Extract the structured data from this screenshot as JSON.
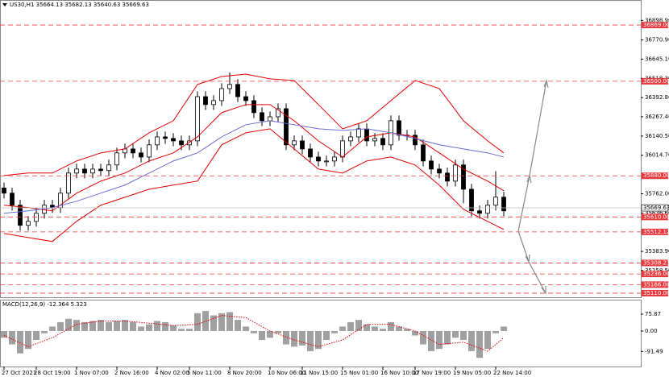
{
  "chart_data": [
    {
      "type": "candlestick",
      "title": "US30,H1 35664.13 35682.13 35640.63 35669.63",
      "categories": [
        "27 Oct 2021",
        null,
        null,
        null,
        "28 Oct 19:00",
        null,
        null,
        null,
        null,
        "1 Nov 07:00",
        null,
        null,
        null,
        null,
        "2 Nov 16:00",
        null,
        null,
        null,
        null,
        "4 Nov 02:00",
        null,
        null,
        null,
        "5 Nov 11:00",
        null,
        null,
        null,
        null,
        "8 Nov 20:00",
        null,
        null,
        null,
        null,
        "10 Nov 06:00",
        null,
        null,
        null,
        "11 Nov 15:00",
        null,
        null,
        null,
        null,
        "15 Nov 01:00",
        null,
        null,
        null,
        null,
        "16 Nov 10:00",
        null,
        null,
        null,
        "17 Nov 19:00",
        null,
        null,
        null,
        null,
        "19 Nov 05:00",
        null,
        null,
        null,
        null,
        "22 Nov 14:00",
        null
      ],
      "open": [
        35800,
        35766,
        35687,
        35555,
        35581,
        35634,
        35687,
        35671,
        35766,
        35898,
        35924,
        35898,
        35924,
        35914,
        35951,
        36030,
        36056,
        36030,
        36003,
        36083,
        36135,
        36125,
        36109,
        36083,
        36109,
        36399,
        36347,
        36373,
        36452,
        36479,
        36399,
        36373,
        36294,
        36241,
        36267,
        36320,
        36083,
        36109,
        36056,
        36003,
        35977,
        35977,
        36003,
        36109,
        36135,
        36188,
        36109,
        36125,
        36083,
        36241,
        36146,
        36146,
        36083,
        35977,
        35924,
        35898,
        35845,
        35951,
        35792,
        35650,
        35634,
        35687,
        35740
      ],
      "high": [
        35835,
        35801,
        35722,
        35616,
        35669,
        35722,
        35722,
        35801,
        35933,
        35959,
        35959,
        35959,
        35959,
        35986,
        36065,
        36091,
        36091,
        36065,
        36118,
        36170,
        36170,
        36160,
        36144,
        36144,
        36434,
        36434,
        36408,
        36487,
        36558,
        36514,
        36434,
        36408,
        36329,
        36302,
        36355,
        36355,
        36144,
        36144,
        36091,
        36038,
        36012,
        36038,
        36144,
        36170,
        36223,
        36223,
        36160,
        36160,
        36276,
        36276,
        36181,
        36181,
        36118,
        36012,
        35959,
        35933,
        35986,
        35986,
        35827,
        35685,
        35722,
        35910,
        35775
      ],
      "low": [
        35731,
        35652,
        35520,
        35520,
        35546,
        35599,
        35636,
        35636,
        35731,
        35863,
        35863,
        35863,
        35879,
        35879,
        35916,
        35995,
        35995,
        35968,
        35968,
        36048,
        36090,
        36074,
        36048,
        36048,
        36074,
        36312,
        36312,
        36338,
        36417,
        36364,
        36338,
        36259,
        36206,
        36206,
        36232,
        36048,
        36048,
        36021,
        35968,
        35942,
        35942,
        35942,
        35968,
        36074,
        36100,
        36074,
        36074,
        36048,
        36048,
        36111,
        36111,
        36048,
        35942,
        35889,
        35863,
        35810,
        35810,
        35700,
        35615,
        35599,
        35599,
        35652,
        35615
      ],
      "close": [
        35766,
        35687,
        35555,
        35581,
        35634,
        35687,
        35671,
        35766,
        35898,
        35924,
        35898,
        35924,
        35914,
        35951,
        36030,
        36056,
        36030,
        36003,
        36083,
        36135,
        36125,
        36109,
        36083,
        36109,
        36399,
        36347,
        36373,
        36452,
        36479,
        36399,
        36373,
        36294,
        36241,
        36267,
        36320,
        36083,
        36109,
        36056,
        36003,
        35977,
        35977,
        36003,
        36109,
        36135,
        36188,
        36109,
        36125,
        36083,
        36241,
        36146,
        36146,
        36083,
        35977,
        35924,
        35898,
        35845,
        35951,
        35792,
        35650,
        35634,
        35687,
        35740,
        35650
      ],
      "overlay_x": [
        0,
        3,
        6,
        9,
        12,
        15,
        18,
        21,
        24,
        27,
        30,
        33,
        36,
        39,
        42,
        45,
        48,
        51,
        54,
        57,
        60,
        62
      ],
      "overlays": [
        {
          "color": "#e00000",
          "values": [
            35882,
            35898,
            35898,
            35977,
            36030,
            36056,
            36162,
            36241,
            36479,
            36531,
            36547,
            36516,
            36505,
            36347,
            36188,
            36241,
            36373,
            36505,
            36452,
            36241,
            36109,
            36030
          ]
        },
        {
          "color": "#e00000",
          "values": [
            35687,
            35671,
            35650,
            35766,
            35845,
            35898,
            35977,
            36030,
            36135,
            36294,
            36347,
            36347,
            36241,
            36109,
            36003,
            36135,
            36162,
            36135,
            36030,
            35924,
            35845,
            35782
          ]
        },
        {
          "color": "#e00000",
          "values": [
            35502,
            35475,
            35449,
            35581,
            35687,
            35739,
            35792,
            35819,
            35845,
            36083,
            36162,
            36188,
            36056,
            35924,
            35898,
            35977,
            36003,
            35951,
            35819,
            35660,
            35581,
            35528
          ]
        },
        {
          "color": "#6a6ad8",
          "values": [
            35634,
            35650,
            35671,
            35713,
            35766,
            35819,
            35898,
            35977,
            36030,
            36135,
            36215,
            36241,
            36215,
            36188,
            36178,
            36188,
            36162,
            36125,
            36083,
            36056,
            36030,
            36003
          ]
        }
      ],
      "ylim": [
        35078,
        37033
      ],
      "yticks": [
        {
          "value": 36898.9,
          "label": "36898.90"
        },
        {
          "value": 36770.9,
          "label": "36770.90"
        },
        {
          "value": 36645.1,
          "label": "36645.10"
        },
        {
          "value": 36518.3,
          "label": "36518.30"
        },
        {
          "value": 36392.8,
          "label": "36392.80"
        },
        {
          "value": 36267.4,
          "label": "36267.40"
        },
        {
          "value": 36140.5,
          "label": "36140.50"
        },
        {
          "value": 36014.7,
          "label": "36014.70"
        },
        {
          "value": 35762,
          "label": "35762.00"
        },
        {
          "value": 35636.6,
          "label": "35636.60"
        },
        {
          "value": 35383.9,
          "label": "35383.90"
        },
        {
          "value": 35258.5,
          "label": "35258.50"
        }
      ],
      "levels": [
        {
          "value": 36869,
          "label": "36869.00"
        },
        {
          "value": 36500,
          "label": "36500.00"
        },
        {
          "value": 35880,
          "label": "35880.00"
        },
        {
          "value": 35610,
          "label": "35610.00"
        },
        35512.12,
        35308.23,
        {
          "value": 35236,
          "label": "35236.00"
        },
        {
          "value": 35166,
          "label": "35166.00"
        },
        {
          "value": 35110,
          "label": "35110.00"
        }
      ],
      "level_color": "#e8383d",
      "last_price": 35669.63,
      "grid": false
    },
    {
      "type": "bar",
      "title": "MACD(12,26,9) -12.364 5.323",
      "color": "#a0a0a0",
      "values": [
        -30,
        -60,
        -100,
        -80,
        -40,
        -10,
        20,
        40,
        55,
        50,
        40,
        45,
        50,
        40,
        45,
        50,
        40,
        20,
        30,
        45,
        40,
        25,
        10,
        10,
        80,
        90,
        70,
        80,
        85,
        50,
        20,
        -10,
        -40,
        -30,
        -10,
        -60,
        -70,
        -65,
        -90,
        -80,
        -40,
        -10,
        20,
        40,
        50,
        30,
        20,
        10,
        40,
        20,
        10,
        -20,
        -60,
        -90,
        -80,
        -60,
        -30,
        -40,
        -90,
        -120,
        -80,
        -10,
        20
      ],
      "signal": {
        "color": "#e00000",
        "values": [
          -20,
          -70,
          -30,
          30,
          45,
          45,
          35,
          25,
          30,
          70,
          60,
          0,
          -40,
          -70,
          -40,
          30,
          30,
          0,
          -60,
          -50,
          -90,
          -30
        ]
      },
      "ylim": [
        -159,
        137
      ],
      "yticks": [
        75.87,
        {
          "value": 0,
          "label": "0.00"
        },
        -91.49
      ]
    }
  ]
}
